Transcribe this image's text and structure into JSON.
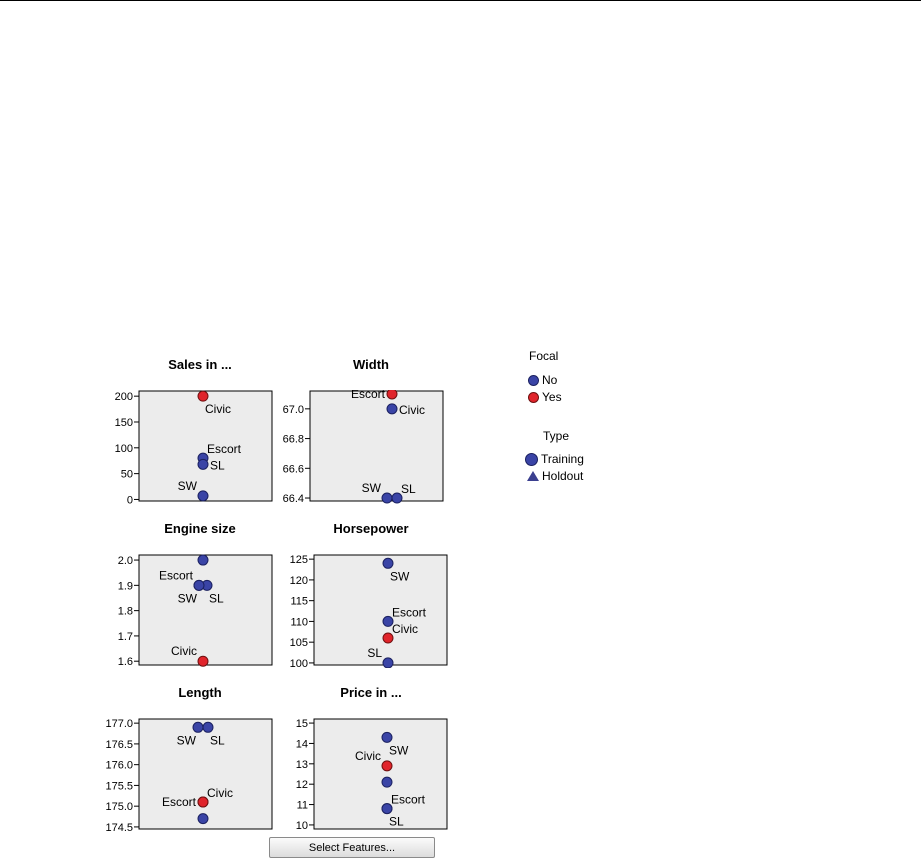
{
  "colors": {
    "no": "#3a44a6",
    "yes": "#e0242b",
    "panel_bg": "#ececec"
  },
  "legend": {
    "focal_title": "Focal",
    "focal_items": [
      {
        "label": "No",
        "color": "#3a44a6"
      },
      {
        "label": "Yes",
        "color": "#e0242b"
      }
    ],
    "type_title": "Type",
    "type_items": [
      {
        "label": "Training",
        "marker": "circle"
      },
      {
        "label": "Holdout",
        "marker": "triangle"
      }
    ]
  },
  "select_features_label": "Select Features...",
  "chart_data": [
    {
      "type": "scatter",
      "title": "Sales in ...",
      "ylim": [
        -3,
        210
      ],
      "yticks": [
        0,
        50,
        100,
        150,
        200
      ],
      "tick_labels": [
        "0",
        "50",
        "100",
        "150",
        "200"
      ],
      "points": [
        {
          "label": "Civic",
          "y": 200,
          "focal": "Yes",
          "dx": 0,
          "label_pos": "below-right"
        },
        {
          "label": "Escort",
          "y": 80,
          "focal": "No",
          "dx": 0,
          "label_pos": "above-right"
        },
        {
          "label": "SL",
          "y": 68,
          "focal": "No",
          "dx": 0,
          "label_pos": "right"
        },
        {
          "label": "SW",
          "y": 7,
          "focal": "No",
          "dx": 0,
          "label_pos": "above-left"
        }
      ]
    },
    {
      "type": "scatter",
      "title": "Width",
      "ylim": [
        66.38,
        67.12
      ],
      "yticks": [
        66.4,
        66.6,
        66.8,
        67.0
      ],
      "tick_labels": [
        "66.4",
        "66.6",
        "66.8",
        "67.0"
      ],
      "points": [
        {
          "label": "Escort",
          "y": 67.1,
          "focal": "Yes",
          "dx": 0,
          "label_pos": "left"
        },
        {
          "label": "Civic",
          "y": 67.0,
          "focal": "No",
          "dx": 0,
          "label_pos": "right"
        },
        {
          "label": "SW",
          "y": 66.4,
          "focal": "No",
          "dx": -5,
          "label_pos": "above-left"
        },
        {
          "label": "SL",
          "y": 66.4,
          "focal": "No",
          "dx": 5,
          "label_pos": "above-right"
        }
      ]
    },
    {
      "type": "scatter",
      "title": "Engine size",
      "ylim": [
        1.585,
        2.02
      ],
      "yticks": [
        1.6,
        1.7,
        1.8,
        1.9,
        2.0
      ],
      "tick_labels": [
        "1.6",
        "1.7",
        "1.8",
        "1.9",
        "2.0"
      ],
      "points": [
        {
          "label": "",
          "y": 2.0,
          "focal": "No",
          "dx": 0,
          "label_pos": "none"
        },
        {
          "label": "Escort",
          "y": 1.9,
          "focal": "No",
          "dx": -4,
          "label_pos": "above-left"
        },
        {
          "label": "SL",
          "y": 1.9,
          "focal": "No",
          "dx": 4,
          "label_pos": "below-right"
        },
        {
          "label": "SW",
          "y": 1.9,
          "focal": "No",
          "dx": -4,
          "label_pos": "below-left"
        },
        {
          "label": "Civic",
          "y": 1.6,
          "focal": "Yes",
          "dx": 0,
          "label_pos": "above-left"
        }
      ]
    },
    {
      "type": "scatter",
      "title": "Horsepower",
      "ylim": [
        99.5,
        126
      ],
      "yticks": [
        100,
        105,
        110,
        115,
        120,
        125
      ],
      "tick_labels": [
        "100",
        "105",
        "110",
        "115",
        "120",
        "125"
      ],
      "points": [
        {
          "label": "SW",
          "y": 124,
          "focal": "No",
          "dx": 0,
          "label_pos": "below-right"
        },
        {
          "label": "Escort",
          "y": 110,
          "focal": "No",
          "dx": 0,
          "label_pos": "above-right"
        },
        {
          "label": "Civic",
          "y": 106,
          "focal": "Yes",
          "dx": 0,
          "label_pos": "above-right"
        },
        {
          "label": "SL",
          "y": 100,
          "focal": "No",
          "dx": 0,
          "label_pos": "above-left"
        }
      ]
    },
    {
      "type": "scatter",
      "title": "Length",
      "ylim": [
        174.45,
        177.1
      ],
      "yticks": [
        174.5,
        175.0,
        175.5,
        176.0,
        176.5,
        177.0
      ],
      "tick_labels": [
        "174.5",
        "175.0",
        "175.5",
        "176.0",
        "176.5",
        "177.0"
      ],
      "points": [
        {
          "label": "SW",
          "y": 176.9,
          "focal": "No",
          "dx": -5,
          "label_pos": "below-left"
        },
        {
          "label": "SL",
          "y": 176.9,
          "focal": "No",
          "dx": 5,
          "label_pos": "below-right"
        },
        {
          "label": "Civic",
          "y": 175.1,
          "focal": "Yes",
          "dx": 0,
          "label_pos": "above-right"
        },
        {
          "label": "Escort",
          "y": 175.1,
          "focal": "Yes",
          "dx": 0,
          "label_pos": "left"
        },
        {
          "label": "",
          "y": 174.7,
          "focal": "No",
          "dx": 0,
          "label_pos": "none"
        }
      ]
    },
    {
      "type": "scatter",
      "title": "Price in ...",
      "ylim": [
        9.8,
        15.2
      ],
      "yticks": [
        10,
        11,
        12,
        13,
        14,
        15
      ],
      "tick_labels": [
        "10",
        "11",
        "12",
        "13",
        "14",
        "15"
      ],
      "points": [
        {
          "label": "SW",
          "y": 14.3,
          "focal": "No",
          "dx": 0,
          "label_pos": "below-right"
        },
        {
          "label": "Civic",
          "y": 12.9,
          "focal": "Yes",
          "dx": 0,
          "label_pos": "above-left"
        },
        {
          "label": "",
          "y": 12.1,
          "focal": "No",
          "dx": 0,
          "label_pos": "none"
        },
        {
          "label": "Escort",
          "y": 10.8,
          "focal": "No",
          "dx": 0,
          "label_pos": "above-right"
        },
        {
          "label": "SL",
          "y": 10.8,
          "focal": "No",
          "dx": 0,
          "label_pos": "below-right"
        }
      ]
    }
  ]
}
